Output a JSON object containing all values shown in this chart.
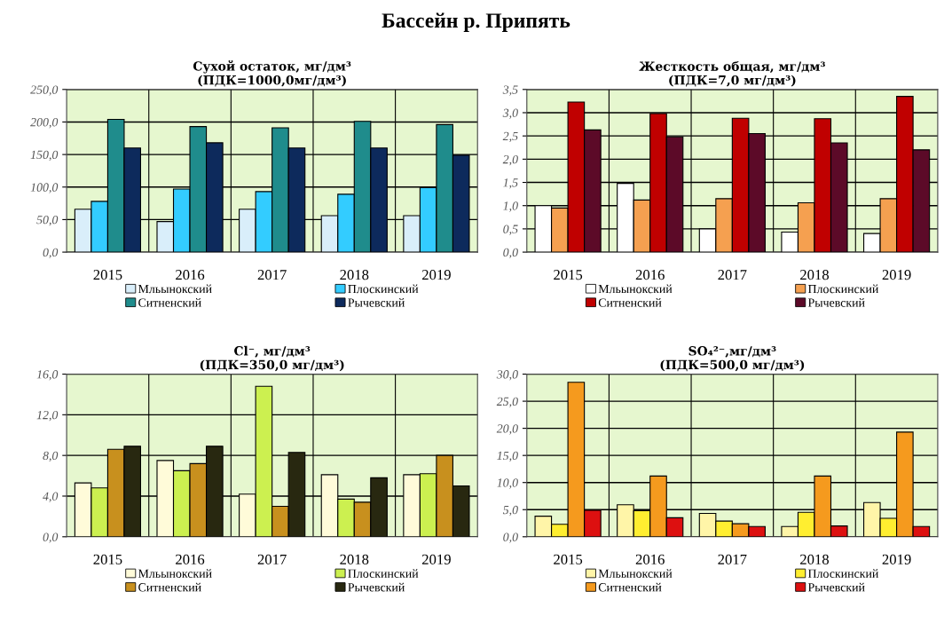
{
  "chart_data": [
    {
      "type": "bar",
      "title": "Сухой остаток, мг/дм³",
      "subtitle": "(ПДК=1000,0мг/дм³)",
      "annotations": [
        "Бассейн р. Припять"
      ],
      "categories": [
        "2015",
        "2016",
        "2017",
        "2018",
        "2019"
      ],
      "series": [
        {
          "name": "Мльынокский",
          "color": "#d9eefa",
          "values": [
            66,
            47,
            66,
            56,
            56
          ]
        },
        {
          "name": "Плоскинский",
          "color": "#33ccff",
          "values": [
            78,
            97,
            93,
            89,
            99
          ]
        },
        {
          "name": "Ситненский",
          "color": "#1f8c8c",
          "values": [
            204,
            193,
            191,
            201,
            196
          ]
        },
        {
          "name": "Рычевский",
          "color": "#0d2a5c",
          "values": [
            160,
            168,
            160,
            160,
            149
          ]
        }
      ],
      "ylim": [
        0,
        250
      ],
      "yticks": [
        {
          "value": 0,
          "label": "0,0"
        },
        {
          "value": 50,
          "label": "50,0"
        },
        {
          "value": 100,
          "label": "100,0"
        },
        {
          "value": 150,
          "label": "150,0"
        },
        {
          "value": 200,
          "label": "200,0"
        },
        {
          "value": 250,
          "label": "250,0"
        }
      ],
      "grid": true,
      "legend": "bottom"
    },
    {
      "type": "bar",
      "title": "Жесткость общая, мг/дм³",
      "subtitle": "(ПДК=7,0 мг/дм³)",
      "categories": [
        "2015",
        "2016",
        "2017",
        "2018",
        "2019"
      ],
      "series": [
        {
          "name": "Мльынокский",
          "color": "#ffffff",
          "values": [
            1.0,
            1.48,
            0.5,
            0.43,
            0.4
          ]
        },
        {
          "name": "Плоскинский",
          "color": "#f5a050",
          "values": [
            0.95,
            1.12,
            1.15,
            1.06,
            1.15
          ]
        },
        {
          "name": "Ситненский",
          "color": "#c00000",
          "values": [
            3.23,
            2.98,
            2.88,
            2.87,
            3.35
          ]
        },
        {
          "name": "Рычевский",
          "color": "#5c0a28",
          "values": [
            2.63,
            2.48,
            2.55,
            2.35,
            2.2
          ]
        }
      ],
      "ylim": [
        0,
        3.5
      ],
      "yticks": [
        {
          "value": 0,
          "label": "0,0"
        },
        {
          "value": 0.5,
          "label": "0,5"
        },
        {
          "value": 1.0,
          "label": "1,0"
        },
        {
          "value": 1.5,
          "label": "1,5"
        },
        {
          "value": 2.0,
          "label": "2,0"
        },
        {
          "value": 2.5,
          "label": "2,5"
        },
        {
          "value": 3.0,
          "label": "3,0"
        },
        {
          "value": 3.5,
          "label": "3,5"
        }
      ],
      "grid": true,
      "legend": "bottom"
    },
    {
      "type": "bar",
      "title": "Cl⁻, мг/дм³",
      "subtitle": "(ПДК=350,0 мг/дм³)",
      "categories": [
        "2015",
        "2016",
        "2017",
        "2018",
        "2019"
      ],
      "series": [
        {
          "name": "Мльынокский",
          "color": "#fffbd9",
          "values": [
            5.3,
            7.5,
            4.2,
            6.1,
            6.1
          ]
        },
        {
          "name": "Плоскинский",
          "color": "#ccf050",
          "values": [
            4.8,
            6.5,
            14.8,
            3.7,
            6.2
          ]
        },
        {
          "name": "Ситненский",
          "color": "#c8901e",
          "values": [
            8.6,
            7.2,
            3.0,
            3.4,
            8.0
          ]
        },
        {
          "name": "Рычевский",
          "color": "#282810",
          "values": [
            8.9,
            8.9,
            8.3,
            5.8,
            5.0
          ]
        }
      ],
      "ylim": [
        0,
        16
      ],
      "yticks": [
        {
          "value": 0,
          "label": "0,0"
        },
        {
          "value": 4,
          "label": "4,0"
        },
        {
          "value": 8,
          "label": "8,0"
        },
        {
          "value": 12,
          "label": "12,0"
        },
        {
          "value": 16,
          "label": "16,0"
        }
      ],
      "grid": true,
      "legend": "bottom"
    },
    {
      "type": "bar",
      "title": "SO₄²⁻,мг/дм³",
      "subtitle": "(ПДК=500,0 мг/дм³)",
      "categories": [
        "2015",
        "2016",
        "2017",
        "2018",
        "2019"
      ],
      "series": [
        {
          "name": "Мльынокский",
          "color": "#fff5a8",
          "values": [
            3.8,
            5.9,
            4.3,
            1.9,
            6.3
          ]
        },
        {
          "name": "Плоскинский",
          "color": "#ffee30",
          "values": [
            2.3,
            4.8,
            2.9,
            4.5,
            3.4
          ]
        },
        {
          "name": "Ситненский",
          "color": "#f59a1e",
          "values": [
            28.5,
            11.2,
            2.4,
            11.2,
            19.3
          ]
        },
        {
          "name": "Рычевский",
          "color": "#dd1010",
          "values": [
            4.9,
            3.5,
            1.9,
            2.0,
            1.9
          ]
        }
      ],
      "ylim": [
        0,
        30
      ],
      "yticks": [
        {
          "value": 0,
          "label": "0,0"
        },
        {
          "value": 5,
          "label": "5,0"
        },
        {
          "value": 10,
          "label": "10,0"
        },
        {
          "value": 15,
          "label": "15,0"
        },
        {
          "value": 20,
          "label": "20,0"
        },
        {
          "value": 25,
          "label": "25,0"
        },
        {
          "value": 30,
          "label": "30,0"
        }
      ],
      "grid": true,
      "legend": "bottom"
    }
  ]
}
